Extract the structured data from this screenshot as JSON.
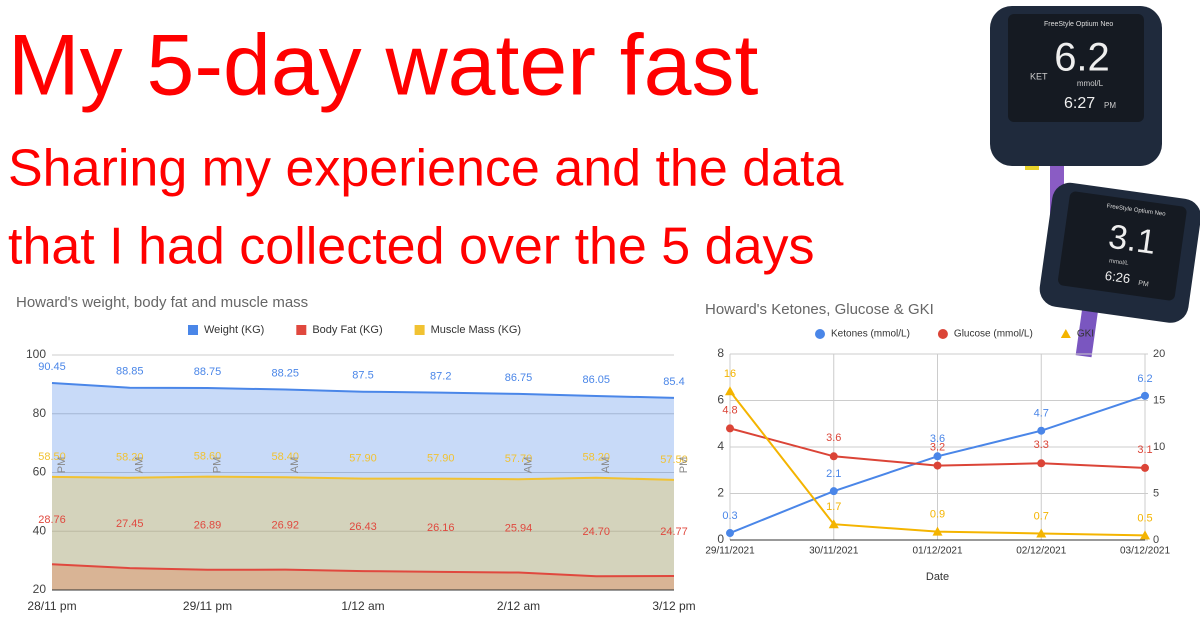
{
  "header": {
    "title": "My 5-day water fast",
    "subtitle_lines": [
      "Sharing my experience and the data",
      "that I had collected over the 5 days"
    ]
  },
  "devices": [
    {
      "brand": "FreeStyle Optium Neo",
      "mode": "KET",
      "reading": "6.2",
      "unit": "mmol/L",
      "time": "6:27",
      "ampm": "PM"
    },
    {
      "brand": "FreeStyle Optium Neo",
      "reading": "3.1",
      "unit": "mmol/L",
      "time": "6:26",
      "ampm": "PM"
    }
  ],
  "chart_data": [
    {
      "type": "area",
      "title": "Howard's weight, body fat and muscle mass",
      "categories": [
        "28/11 pm",
        null,
        "29/11 pm",
        null,
        "1/12 am",
        null,
        "2/12 am",
        null,
        "3/12 pm"
      ],
      "point_labels": [
        "PM",
        "AM",
        "PM",
        "AM",
        null,
        null,
        "AM",
        "AM",
        "PM"
      ],
      "series": [
        {
          "name": "Weight (KG)",
          "color": "#4a86e8",
          "values": [
            90.45,
            88.85,
            88.75,
            88.25,
            87.5,
            87.2,
            86.75,
            86.05,
            85.4
          ]
        },
        {
          "name": "Body Fat (KG)",
          "color": "#e0483e",
          "values": [
            28.76,
            27.45,
            26.89,
            26.92,
            26.43,
            26.16,
            25.94,
            24.7,
            24.77
          ],
          "value_labels": [
            "28.76",
            "27.45",
            "26.89",
            "26.92",
            "26.43",
            "26.16",
            "25.94",
            "24.70",
            "24.77"
          ]
        },
        {
          "name": "Muscle Mass (KG)",
          "color": "#f1c232",
          "values": [
            58.5,
            58.2,
            58.6,
            58.4,
            57.9,
            57.9,
            57.7,
            58.2,
            57.5
          ],
          "value_labels": [
            "58.50",
            "58.20",
            "58.60",
            "58.40",
            "57.90",
            "57.90",
            "57.70",
            "58.20",
            "57.50"
          ]
        }
      ],
      "ylim": [
        20,
        100
      ],
      "yticks": [
        20,
        40,
        60,
        80,
        100
      ],
      "grid": true,
      "legend": "top"
    },
    {
      "type": "line",
      "title": "Howard's Ketones, Glucose & GKI",
      "x_label": "Date",
      "categories": [
        "29/11/2021",
        "30/11/2021",
        "01/12/2021",
        "02/12/2021",
        "03/12/2021"
      ],
      "series": [
        {
          "name": "Ketones (mmol/L)",
          "color": "#4a86e8",
          "marker": "circle",
          "values": [
            0.3,
            2.1,
            3.6,
            4.7,
            6.2
          ]
        },
        {
          "name": "Glucose (mmol/L)",
          "color": "#db4437",
          "marker": "circle",
          "values": [
            4.8,
            3.6,
            3.2,
            3.3,
            3.1
          ]
        },
        {
          "name": "GKI",
          "color": "#f4b400",
          "marker": "triangle",
          "axis": "y2",
          "values": [
            16,
            1.7,
            0.9,
            0.7,
            0.5
          ]
        }
      ],
      "ylim": [
        0,
        8
      ],
      "yticks": [
        0,
        2,
        4,
        6,
        8
      ],
      "y2lim": [
        0,
        20
      ],
      "y2ticks": [
        0,
        5,
        10,
        15,
        20
      ],
      "grid": true,
      "legend": "top"
    }
  ]
}
